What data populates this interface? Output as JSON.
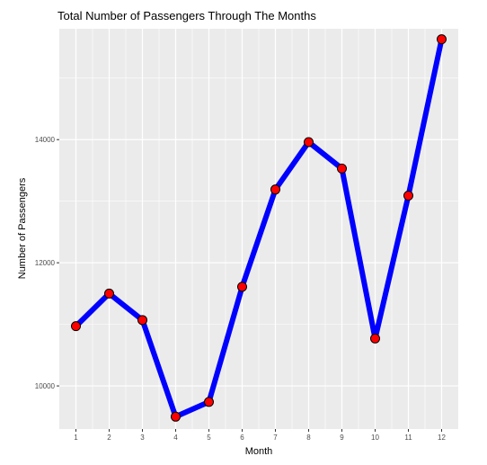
{
  "chart_data": {
    "type": "line",
    "title": "Total Number of Passengers Through The Months",
    "xlabel": "Month",
    "ylabel": "Number of Passengers",
    "x": [
      1,
      2,
      3,
      4,
      5,
      6,
      7,
      8,
      9,
      10,
      11,
      12
    ],
    "x_ticks": [
      "1",
      "2",
      "3",
      "4",
      "5",
      "6",
      "7",
      "8",
      "9",
      "10",
      "11",
      "12"
    ],
    "y_ticks": [
      10000,
      12000,
      14000
    ],
    "y_tick_labels": [
      "10000",
      "12000",
      "14000"
    ],
    "series": [
      {
        "values": [
          10970,
          11500,
          11070,
          9500,
          9740,
          11610,
          13190,
          13960,
          13530,
          10770,
          13090,
          15630
        ]
      }
    ],
    "xlim": [
      0.5,
      12.5
    ],
    "ylim": [
      9300,
      15800
    ],
    "grid": true,
    "legend": "none",
    "colors": {
      "panel": "#ebebeb",
      "grid": "#ffffff",
      "line": "#0000ff",
      "point_fill": "#ff0000",
      "point_stroke": "#000000"
    }
  }
}
